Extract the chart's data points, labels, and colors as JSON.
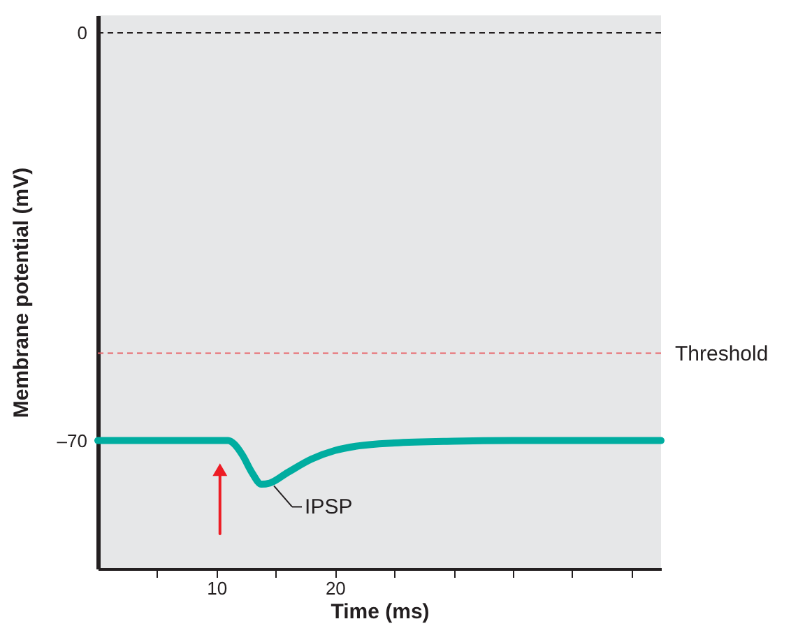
{
  "chart_data": {
    "type": "line",
    "xlabel": "Time (ms)",
    "ylabel": "Membrane potential (mV)",
    "xlim": [
      0,
      47.5
    ],
    "ylim": [
      -92,
      3
    ],
    "xticks": [
      {
        "value": 5,
        "label": null
      },
      10,
      {
        "value": 15,
        "label": null
      },
      20,
      {
        "value": 25,
        "label": null
      },
      {
        "value": 30,
        "label": null
      },
      {
        "value": 35,
        "label": null
      },
      {
        "value": 40,
        "label": null
      },
      {
        "value": 45,
        "label": null
      }
    ],
    "yticks": [
      0,
      {
        "value": -70,
        "label": "–70"
      }
    ],
    "grid": false,
    "marker": "none",
    "line_style": "solid",
    "series": [
      {
        "color": "#00ada0",
        "x": [
          0,
          11,
          11.5,
          12.2,
          13,
          13.8,
          14.5,
          16,
          18,
          20,
          22,
          25,
          30,
          35,
          40,
          47.5
        ],
        "values": [
          -70,
          -70,
          -70.6,
          -72.5,
          -75.5,
          -77.5,
          -77.3,
          -75.5,
          -73.2,
          -71.7,
          -70.9,
          -70.4,
          -70.1,
          -70,
          -70,
          -70
        ]
      },
      {
        "type": "line",
        "color": "#ed1c24",
        "marker": "triangle",
        "x": [
          10.3,
          10.3
        ],
        "values": [
          -86,
          -75
        ]
      }
    ],
    "ref_lines": [
      {
        "axis": "y",
        "value": 0,
        "label": null,
        "color": "#231f20",
        "line_style": "dashed"
      },
      {
        "axis": "y",
        "value": -55,
        "label": "Threshold",
        "color": "#e8676b",
        "line_style": "dashed"
      }
    ],
    "annotations": [
      {
        "text": "IPSP",
        "x": 14.5,
        "y": -77.3
      }
    ]
  }
}
